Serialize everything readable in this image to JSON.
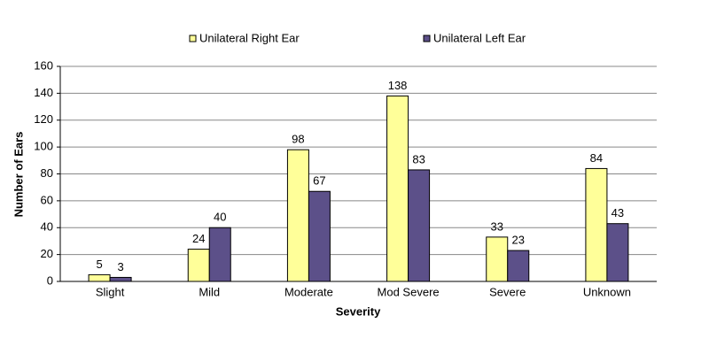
{
  "chart_data": {
    "type": "bar",
    "x_label": "Severity",
    "y_label": "Number of Ears",
    "categories": [
      "Slight",
      "Mild",
      "Moderate",
      "Mod Severe",
      "Severe",
      "Unknown"
    ],
    "series": [
      {
        "name": "Unilateral Right Ear",
        "color": "#ffff99",
        "values": [
          5,
          24,
          98,
          138,
          33,
          84
        ]
      },
      {
        "name": "Unilateral Left Ear",
        "color": "#5c5089",
        "values": [
          3,
          40,
          67,
          83,
          23,
          43
        ]
      }
    ],
    "ylim": [
      0,
      160
    ],
    "yticks": [
      0,
      20,
      40,
      60,
      80,
      100,
      120,
      140,
      160
    ],
    "grid": true,
    "legend": "top"
  }
}
